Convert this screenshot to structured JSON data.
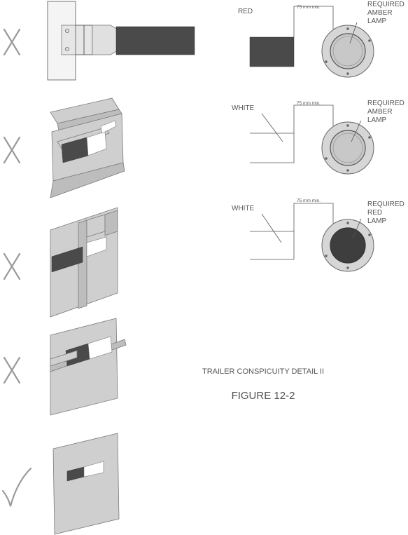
{
  "mount_examples": [
    {
      "mark": "cross"
    },
    {
      "mark": "cross"
    },
    {
      "mark": "cross"
    },
    {
      "mark": "cross"
    },
    {
      "mark": "check"
    }
  ],
  "lamp_details": [
    {
      "strip_label": "RED",
      "dimension": "75 mm min.",
      "lamp_label": [
        "REQUIRED",
        "AMBER",
        "LAMP"
      ],
      "strip_color": "#4a4a4a",
      "lamp_color": "#c8c8c8"
    },
    {
      "strip_label": "WHITE",
      "dimension": "75 mm min.",
      "lamp_label": [
        "REQUIRED",
        "AMBER",
        "LAMP"
      ],
      "strip_color": "#ffffff",
      "lamp_color": "#c8c8c8"
    },
    {
      "strip_label": "WHITE",
      "dimension": "75 mm min.",
      "lamp_label": [
        "REQUIRED",
        "RED",
        "LAMP"
      ],
      "strip_color": "#ffffff",
      "lamp_color": "#3e3e3e"
    }
  ],
  "caption": {
    "title": "TRAILER CONSPICUITY DETAIL II",
    "figure": "FIGURE 12-2"
  }
}
